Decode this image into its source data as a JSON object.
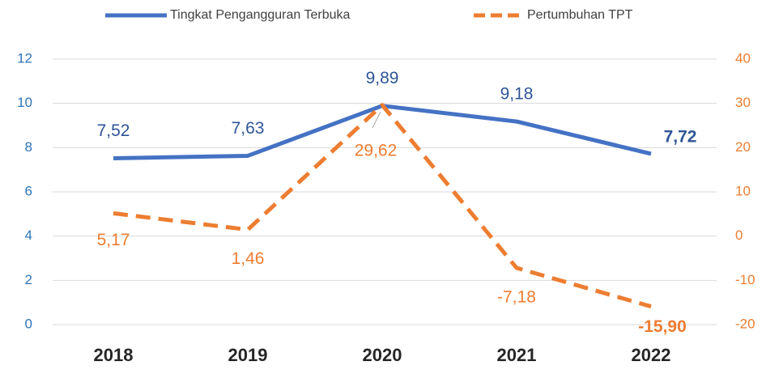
{
  "chart_data": {
    "type": "line",
    "categories": [
      "2018",
      "2019",
      "2020",
      "2021",
      "2022"
    ],
    "series": [
      {
        "name": "Tingkat Pengangguran Terbuka",
        "color": "#4472c4",
        "values": [
          7.52,
          7.63,
          9.89,
          9.18,
          7.72
        ],
        "value_labels": [
          "7,52",
          "7,63",
          "9,89",
          "9,18",
          "7,72"
        ]
      },
      {
        "name": "Pertumbuhan TPT",
        "color": "#ed7d31",
        "axis": "y2",
        "dashed": true,
        "values": [
          5.17,
          1.46,
          29.62,
          -7.18,
          -15.9
        ],
        "value_labels": [
          "5,17",
          "1,46",
          "29,62",
          "-7,18",
          "-15,90"
        ]
      }
    ],
    "ylim": [
      0,
      12
    ],
    "yticks": [
      0,
      2,
      4,
      6,
      8,
      10,
      12
    ],
    "y2lim": [
      -20,
      40
    ],
    "y2ticks": [
      -20,
      -10,
      0,
      10,
      20,
      30,
      40
    ],
    "grid": true,
    "legend": "top"
  }
}
